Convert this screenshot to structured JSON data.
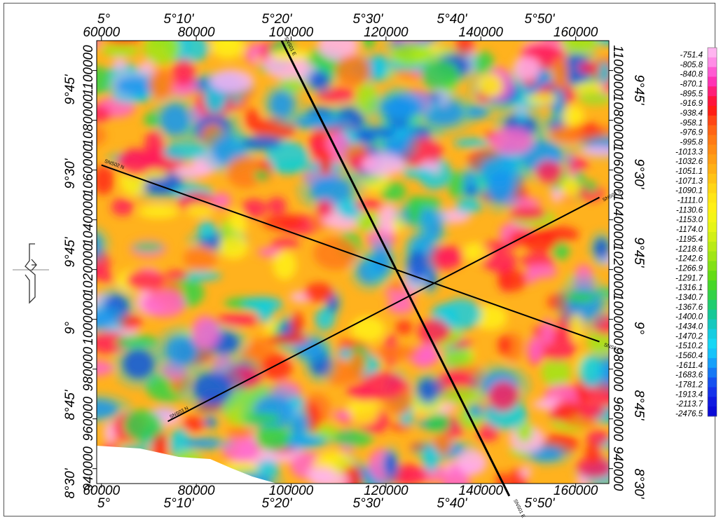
{
  "map": {
    "easting_ticks": [
      "60000",
      "80000",
      "100000",
      "120000",
      "140000",
      "160000"
    ],
    "northing_ticks": [
      "1100000",
      "1080000",
      "1060000",
      "1040000",
      "1020000",
      "1000000",
      "980000",
      "960000",
      "940000"
    ],
    "longitude_ticks": [
      "5°",
      "5°10'",
      "5°20'",
      "5°30'",
      "5°40'",
      "5°50'"
    ],
    "latitude_ticks": [
      "9°45'",
      "9°30'",
      "9°45'",
      "9°",
      "8°45'",
      "8°30'"
    ]
  },
  "profiles": [
    {
      "start_label": "SNS02 N",
      "end_label": "SNS02 N",
      "start": [
        60000,
        1062000
      ],
      "end": [
        165000,
        991000
      ]
    },
    {
      "start_label": "SNS01 E",
      "end_label": "SNS01 E",
      "start": [
        98000,
        1112000
      ],
      "end": [
        146000,
        929000
      ]
    },
    {
      "start_label": "SNS03 N",
      "end_label": "SNS03 S",
      "start": [
        74000,
        959000
      ],
      "end": [
        165000,
        1049000
      ]
    }
  ],
  "legend": {
    "values": [
      "-751.4",
      "-805.8",
      "-840.8",
      "-870.1",
      "-895.5",
      "-916.9",
      "-938.4",
      "-958.1",
      "-976.9",
      "-995.8",
      "-1013.3",
      "-1032.6",
      "-1051.1",
      "-1071.3",
      "-1090.1",
      "-1111.0",
      "-1130.6",
      "-1153.0",
      "-1174.0",
      "-1195.4",
      "-1218.6",
      "-1242.6",
      "-1266.9",
      "-1291.7",
      "-1316.1",
      "-1340.7",
      "-1367.6",
      "-1400.0",
      "-1434.0",
      "-1470.2",
      "-1510.2",
      "-1560.4",
      "-1611.4",
      "-1683.6",
      "-1781.2",
      "-1913.4",
      "-2113.7",
      "-2476.5"
    ],
    "colors": [
      "#ffb4f0",
      "#ff8ce6",
      "#ff5ad2",
      "#ff32b4",
      "#ff1e78",
      "#ff143c",
      "#ff1e14",
      "#ff4614",
      "#ff6414",
      "#ff7a14",
      "#ff8c14",
      "#ff9e14",
      "#ffb014",
      "#ffc314",
      "#ffd614",
      "#ffe614",
      "#fff014",
      "#f5f514",
      "#e6f514",
      "#d2f014",
      "#b9eb14",
      "#a0e614",
      "#82e114",
      "#64dc14",
      "#46d728",
      "#32d246",
      "#1ecd6e",
      "#14c896",
      "#14c8be",
      "#14cde1",
      "#14d7f5",
      "#14c3fa",
      "#14a0fa",
      "#1478f5",
      "#1450f0",
      "#1432eb",
      "#0f19e1",
      "#0a0ad7"
    ]
  },
  "colors": {
    "background": "#ffffff",
    "profile_line": "#000000"
  }
}
